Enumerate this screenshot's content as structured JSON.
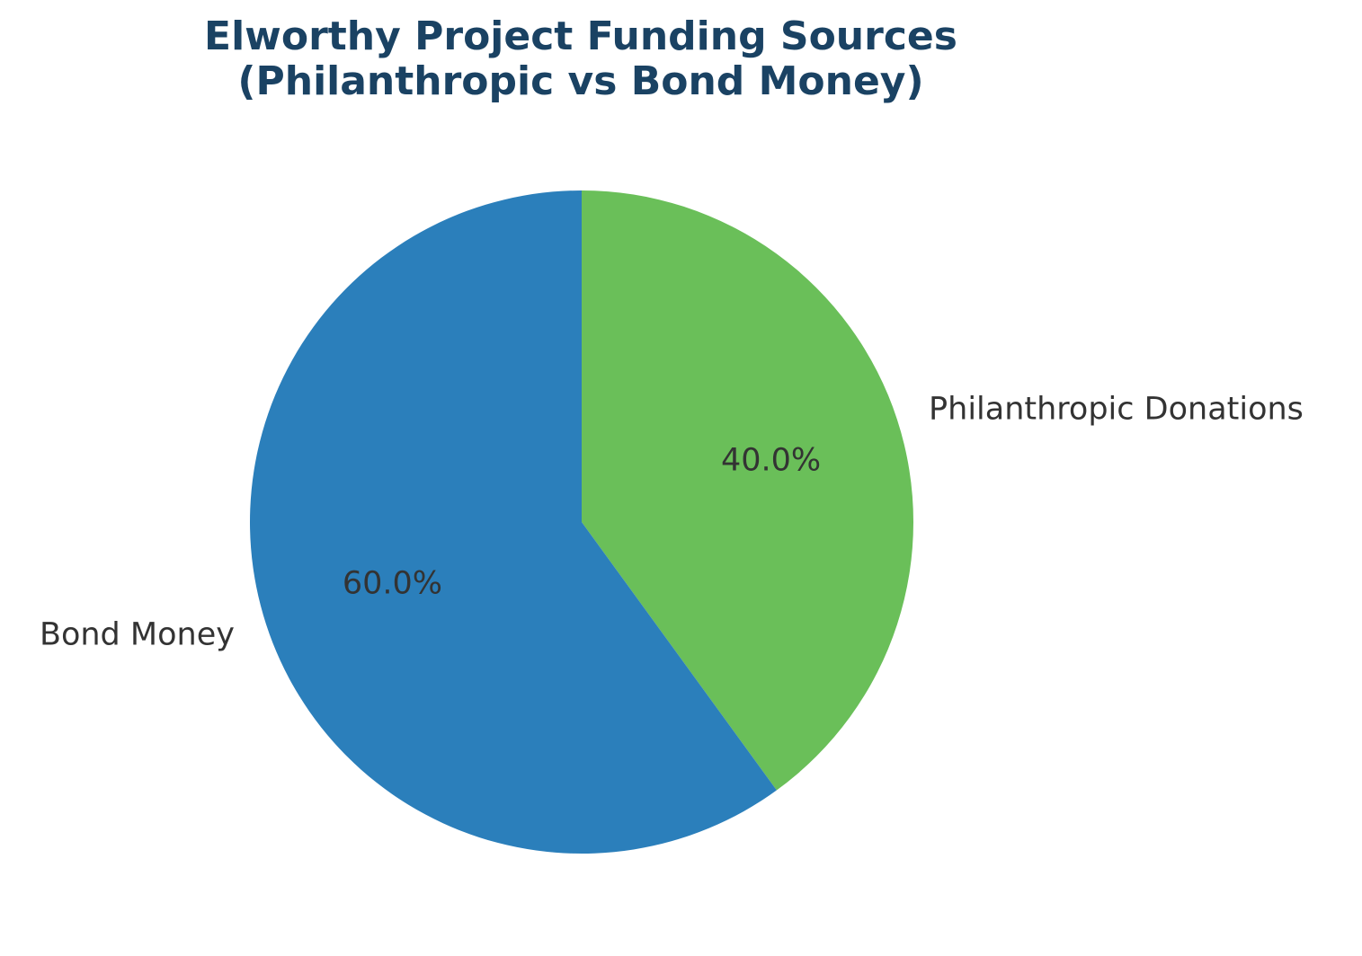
{
  "chart_data": {
    "type": "pie",
    "title_lines": [
      "Elworthy Project Funding Sources",
      "(Philanthropic vs Bond Money)"
    ],
    "title_color": "#1a4263",
    "label_color": "#333333",
    "start_angle_deg": 90,
    "direction": "clockwise",
    "slices": [
      {
        "label": "Philanthropic Donations",
        "value": 40.0,
        "percent_label": "40.0%",
        "color": "#6abf59"
      },
      {
        "label": "Bond Money",
        "value": 60.0,
        "percent_label": "60.0%",
        "color": "#2b7fbb"
      }
    ]
  }
}
